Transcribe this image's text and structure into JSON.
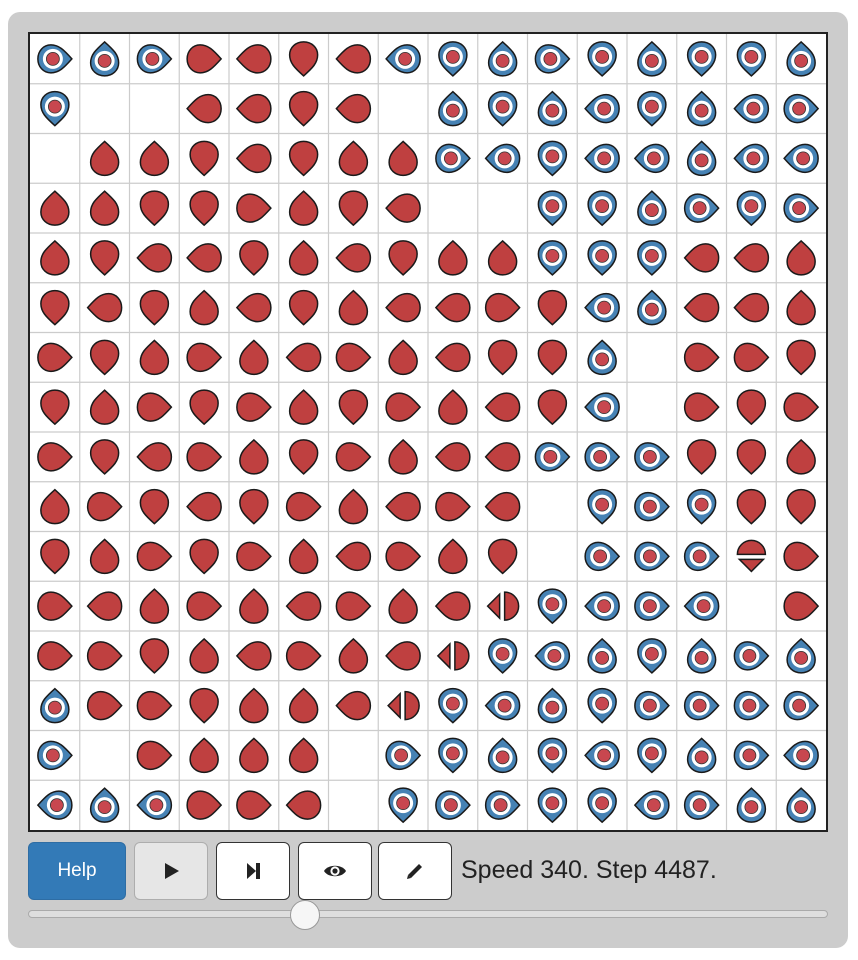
{
  "app": {
    "title": ""
  },
  "grid": {
    "size": 16,
    "legend": {
      "R": "red agent",
      "B": "blue agent",
      "X": "red agent marked as moving",
      "empty": "empty cell"
    },
    "colors": {
      "red": "#bf4040",
      "blue": "#4682b4",
      "blue_dot": "#c8474f",
      "outline": "#1a1a1a",
      "line": "#cccccc"
    },
    "cells": [
      [
        "B:l",
        "B:d",
        "B:l",
        "R:l",
        "R:r",
        "R:u",
        "R:r",
        "B:r",
        "B:u",
        "B:d",
        "B:l",
        "B:u",
        "B:d",
        "B:u",
        "B:u",
        "B:d"
      ],
      [
        "B:u",
        "",
        "",
        "R:r",
        "R:r",
        "R:u",
        "R:r",
        "",
        "B:d",
        "B:u",
        "B:d",
        "B:r",
        "B:u",
        "B:d",
        "B:r",
        "B:l"
      ],
      [
        "",
        "R:d",
        "R:d",
        "R:u",
        "R:r",
        "R:u",
        "R:d",
        "R:d",
        "B:l",
        "B:r",
        "B:u",
        "B:r",
        "B:r",
        "B:d",
        "B:r",
        "B:r"
      ],
      [
        "R:d",
        "R:d",
        "R:u",
        "R:u",
        "R:l",
        "R:d",
        "R:u",
        "R:r",
        "",
        "",
        "B:u",
        "B:u",
        "B:d",
        "B:l",
        "B:u",
        "B:l"
      ],
      [
        "R:d",
        "R:u",
        "R:r",
        "R:r",
        "R:u",
        "R:d",
        "R:r",
        "R:u",
        "R:d",
        "R:d",
        "B:u",
        "B:u",
        "B:u",
        "R:r",
        "R:r",
        "R:d"
      ],
      [
        "R:u",
        "R:r",
        "R:u",
        "R:d",
        "R:r",
        "R:u",
        "R:d",
        "R:r",
        "R:r",
        "R:l",
        "R:u",
        "B:r",
        "B:d",
        "R:r",
        "R:r",
        "R:d"
      ],
      [
        "R:l",
        "R:u",
        "R:d",
        "R:l",
        "R:d",
        "R:r",
        "R:l",
        "R:d",
        "R:r",
        "R:u",
        "R:u",
        "B:d",
        "",
        "R:l",
        "R:l",
        "R:u"
      ],
      [
        "R:u",
        "R:d",
        "R:l",
        "R:u",
        "R:l",
        "R:d",
        "R:u",
        "R:l",
        "R:d",
        "R:r",
        "R:u",
        "B:r",
        "",
        "R:l",
        "R:u",
        "R:l"
      ],
      [
        "R:l",
        "R:u",
        "R:r",
        "R:l",
        "R:d",
        "R:u",
        "R:l",
        "R:d",
        "R:r",
        "R:r",
        "B:l",
        "B:l",
        "B:l",
        "R:u",
        "R:u",
        "R:d"
      ],
      [
        "R:d",
        "R:l",
        "R:u",
        "R:r",
        "R:u",
        "R:l",
        "R:d",
        "R:r",
        "R:l",
        "R:r",
        "",
        "B:u",
        "B:l",
        "B:u",
        "R:u",
        "R:u"
      ],
      [
        "R:u",
        "R:d",
        "R:l",
        "R:u",
        "R:l",
        "R:d",
        "R:r",
        "R:l",
        "R:d",
        "R:u",
        "",
        "B:l",
        "B:l",
        "B:l",
        "X:ud",
        "R:l"
      ],
      [
        "R:l",
        "R:r",
        "R:d",
        "R:l",
        "R:d",
        "R:r",
        "R:l",
        "R:d",
        "R:r",
        "X:lr",
        "B:u",
        "B:r",
        "B:l",
        "B:r",
        "",
        "R:l"
      ],
      [
        "R:l",
        "R:l",
        "R:u",
        "R:d",
        "R:r",
        "R:l",
        "R:d",
        "R:r",
        "X:lr",
        "B:u",
        "B:r",
        "B:d",
        "B:u",
        "B:d",
        "B:l",
        "B:d"
      ],
      [
        "B:d",
        "R:l",
        "R:l",
        "R:u",
        "R:d",
        "R:d",
        "R:r",
        "X:lr",
        "B:u",
        "B:r",
        "B:d",
        "B:u",
        "B:l",
        "B:l",
        "B:l",
        "B:l"
      ],
      [
        "B:l",
        "",
        "R:l",
        "R:d",
        "R:d",
        "R:d",
        "",
        "B:l",
        "B:u",
        "B:d",
        "B:u",
        "B:r",
        "B:u",
        "B:d",
        "B:l",
        "B:r"
      ],
      [
        "B:r",
        "B:d",
        "B:r",
        "R:l",
        "R:l",
        "R:r",
        "",
        "B:u",
        "B:l",
        "B:l",
        "B:u",
        "B:u",
        "B:r",
        "B:l",
        "B:d",
        "B:d"
      ]
    ]
  },
  "controls": {
    "help_label": "Help",
    "play_icon": "play-icon",
    "step_icon": "step-forward-icon",
    "view_icon": "eye-icon",
    "edit_icon": "pencil-icon"
  },
  "status": {
    "text": "Speed 340. Step 4487.",
    "speed": 340,
    "step": 4487
  },
  "speed_slider": {
    "value": 0.34
  }
}
